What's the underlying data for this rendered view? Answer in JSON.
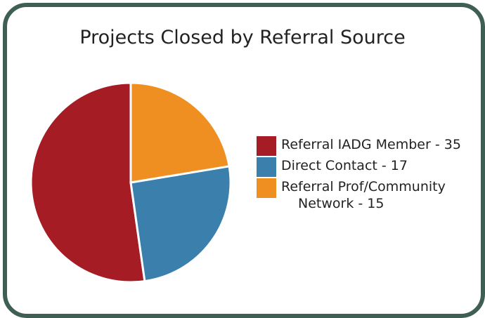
{
  "chart_data": {
    "type": "pie",
    "title": "Projects Closed by Referral Source",
    "series": [
      {
        "name": "Referral IADG Member - 35",
        "color": "#a51c24",
        "values": [
          35
        ]
      },
      {
        "name": "Direct Contact - 17",
        "color": "#3b7fad",
        "values": [
          17
        ]
      },
      {
        "name": "Referral Prof/Community Network - 15",
        "color": "#ef8f22",
        "values": [
          15
        ]
      }
    ],
    "legend": "right"
  }
}
